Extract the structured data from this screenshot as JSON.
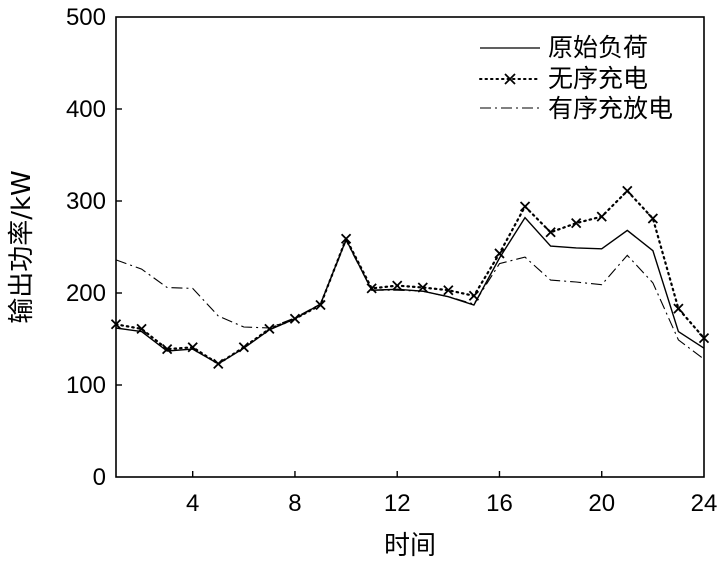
{
  "chart_data": {
    "type": "line",
    "title": "",
    "xlabel": "时间",
    "ylabel": "输出功率/kW",
    "xlim": [
      1,
      24
    ],
    "ylim": [
      0,
      500
    ],
    "xticks": [
      4,
      8,
      12,
      16,
      20,
      24
    ],
    "yticks": [
      0,
      100,
      200,
      300,
      400,
      500
    ],
    "grid": false,
    "legend_position": "top-right",
    "x": [
      1,
      2,
      3,
      4,
      5,
      6,
      7,
      8,
      9,
      10,
      11,
      12,
      13,
      14,
      15,
      16,
      17,
      18,
      19,
      20,
      21,
      22,
      23,
      24
    ],
    "series": [
      {
        "name": "原始负荷",
        "style": "solid",
        "values": [
          162,
          158,
          137,
          139,
          123,
          140,
          160,
          172,
          188,
          258,
          203,
          204,
          202,
          196,
          187,
          238,
          282,
          251,
          249,
          248,
          268,
          246,
          158,
          140
        ]
      },
      {
        "name": "无序充电",
        "style": "dotted-x",
        "values": [
          166,
          161,
          139,
          141,
          123,
          141,
          161,
          172,
          187,
          259,
          205,
          208,
          206,
          203,
          197,
          243,
          294,
          266,
          276,
          283,
          311,
          281,
          183,
          151
        ]
      },
      {
        "name": "有序充放电",
        "style": "dashdot",
        "values": [
          236,
          226,
          206,
          205,
          175,
          163,
          162,
          173,
          188,
          257,
          203,
          203,
          202,
          196,
          188,
          232,
          239,
          214,
          212,
          209,
          241,
          211,
          149,
          128
        ]
      }
    ]
  }
}
